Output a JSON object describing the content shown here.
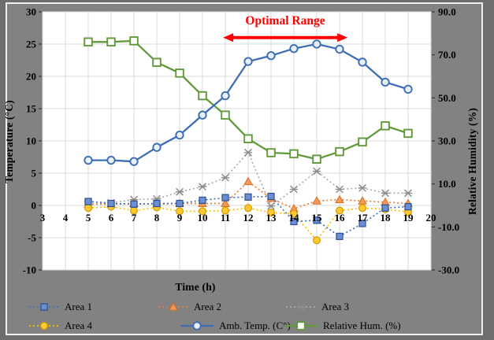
{
  "figure": {
    "background": "#828282",
    "frame_color": "#6E6E6E",
    "plot_background": "#FFFFFF",
    "gridline_color": "#D8D8D8"
  },
  "annotation": {
    "label": "Optimal Range",
    "color": "#FF0000",
    "arrow": {
      "from_hour": 10.9,
      "to_hour": 16.35,
      "at_value": 26
    }
  },
  "axes": {
    "x_title": "Time (h)",
    "left_title": "Temperature (°C)",
    "right_title": "Relative Humidity (%)",
    "x_ticks": [
      3,
      4,
      5,
      6,
      7,
      8,
      9,
      10,
      11,
      12,
      13,
      14,
      15,
      16,
      17,
      18,
      19,
      20
    ],
    "left_ticks": [
      "30",
      "25",
      "20",
      "15",
      "10",
      "5",
      "0",
      "-5",
      "-10"
    ],
    "right_ticks": [
      "90.0",
      "70.0",
      "50.0",
      "30.0",
      "10.0",
      "-10.0",
      "-30.0"
    ]
  },
  "chart_data": {
    "type": "line",
    "x": [
      5,
      6,
      7,
      8,
      9,
      10,
      11,
      12,
      13,
      14,
      15,
      16,
      17,
      18,
      19
    ],
    "x_label": "Time (h)",
    "y_left_label": "Temperature (°C)",
    "y_right_label": "Relative Humidity (%)",
    "x_range": [
      3,
      20
    ],
    "y_left_range": [
      -10,
      30
    ],
    "y_right_range": [
      -30,
      90
    ],
    "grid": true,
    "legend_position": "bottom",
    "series": [
      {
        "name": "Area 1",
        "axis": "left",
        "line": "dotted",
        "marker": "square",
        "color": "#4472C4",
        "marker_fill": "#6B8FD4",
        "marker_stroke": "#2E4F8F",
        "values": [
          0.6,
          0.3,
          0.2,
          0.3,
          0.3,
          0.8,
          1.2,
          1.3,
          1.4,
          -2.5,
          -2.3,
          -4.8,
          -2.8,
          -0.4,
          -0.2
        ]
      },
      {
        "name": "Area 2",
        "axis": "left",
        "line": "dotted",
        "marker": "triangle",
        "color": "#ED7D31",
        "marker_fill": "#ED9A5C",
        "marker_stroke": "#E06B1F",
        "values": [
          0.2,
          0.2,
          0.3,
          0.2,
          0.3,
          0.3,
          0.3,
          3.7,
          1.1,
          -0.5,
          0.7,
          0.9,
          0.7,
          0.5,
          0.3
        ]
      },
      {
        "name": "Area 3",
        "axis": "left",
        "line": "dotted",
        "marker": "asterisk",
        "color": "#ABABAB",
        "marker_fill": "#ABABAB",
        "marker_stroke": "#8C8C8C",
        "values": [
          0.6,
          0.4,
          0.9,
          1.0,
          2.1,
          2.9,
          4.3,
          8.2,
          -0.1,
          2.5,
          5.3,
          2.5,
          2.7,
          1.9,
          1.9
        ]
      },
      {
        "name": "Area 4",
        "axis": "left",
        "line": "dotted",
        "marker": "circle",
        "color": "#FFC000",
        "marker_fill": "#FFC933",
        "marker_stroke": "#D29B00",
        "values": [
          -0.4,
          -0.2,
          -0.8,
          -0.3,
          -0.9,
          -0.9,
          -0.8,
          -0.4,
          -1.1,
          -1.3,
          -5.4,
          -0.8,
          -0.4,
          -0.6,
          -1.0
        ]
      },
      {
        "name": "Amb. Temp. (C°)",
        "axis": "left",
        "line": "solid",
        "marker": "open-circle",
        "color": "#3D6EB5",
        "marker_fill": "#EAF0F9",
        "marker_stroke": "#3D6EB5",
        "values": [
          7,
          7,
          6.8,
          9,
          10.9,
          14,
          17,
          22.3,
          23.2,
          24.3,
          25,
          24.2,
          22.2,
          19.1,
          18
        ]
      },
      {
        "name": "Relative Hum. (%)",
        "axis": "right",
        "line": "solid",
        "marker": "open-square",
        "color": "#61993B",
        "marker_fill": "#FEFEFE",
        "marker_stroke": "#61993B",
        "values": [
          76,
          76,
          76.5,
          66.5,
          61.5,
          51,
          42,
          31,
          24.5,
          24,
          21.5,
          25,
          29.5,
          37,
          33.5
        ]
      }
    ]
  },
  "legend": {
    "items": [
      {
        "label": "Area 1"
      },
      {
        "label": "Area 2"
      },
      {
        "label": "Area 3"
      },
      {
        "label": "Area 4"
      },
      {
        "label": "Amb. Temp. (C°)"
      },
      {
        "label": "Relative Hum. (%)"
      }
    ]
  }
}
